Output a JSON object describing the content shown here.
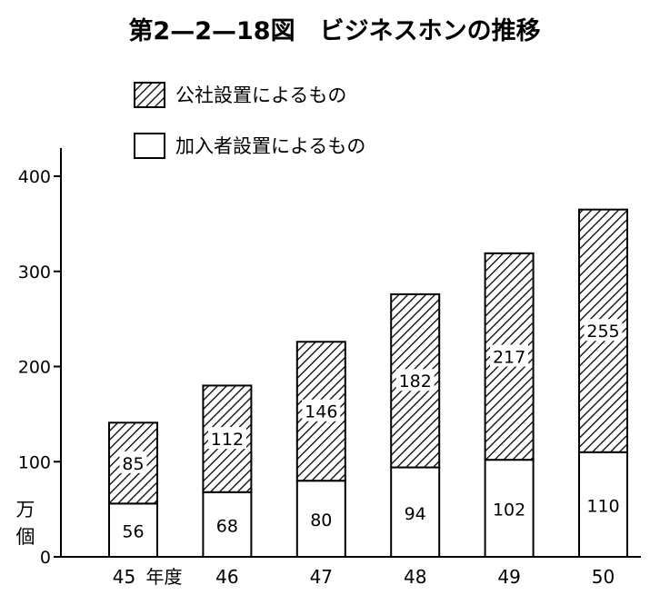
{
  "chart_data": {
    "type": "bar",
    "stacked": true,
    "title": "第2—2—18図　ビジネスホンの推移",
    "categories": [
      "45",
      "46",
      "47",
      "48",
      "49",
      "50"
    ],
    "x_unit_suffix": "年度",
    "ylabel": "万個",
    "ylim": [
      0,
      400
    ],
    "yticks": [
      "0",
      "100",
      "200",
      "300",
      "400"
    ],
    "grid": false,
    "legend_position": "top",
    "series": [
      {
        "name": "加入者設置によるもの",
        "values": [
          56,
          68,
          80,
          94,
          102,
          110
        ],
        "fill": "plain",
        "color": "#ffffff"
      },
      {
        "name": "公社設置によるもの",
        "values": [
          85,
          112,
          146,
          182,
          217,
          255
        ],
        "fill": "hatched",
        "color": "#000000"
      }
    ]
  }
}
